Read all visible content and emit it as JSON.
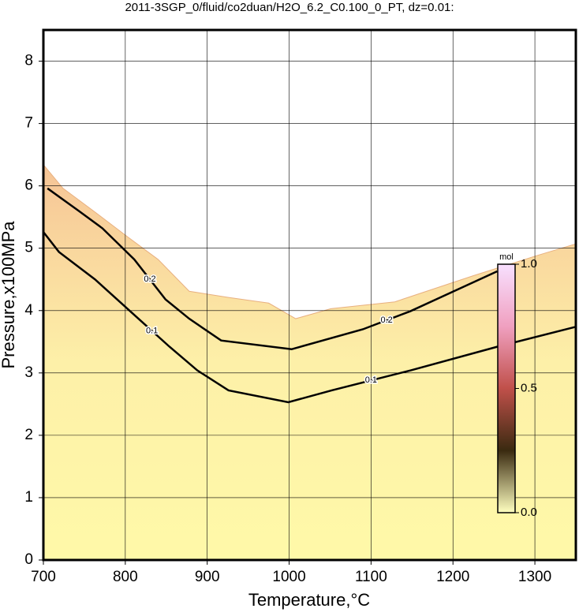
{
  "chart_data": {
    "type": "contour",
    "title": "2011-3SGP_0/fluid/co2duan/H2O_6.2_C0.100_0_PT, dz=0.01:",
    "xlabel": "Temperature,°C",
    "ylabel": "Pressure,x100MPa",
    "xlim": [
      700,
      1350
    ],
    "ylim": [
      0,
      8.5
    ],
    "xticks": [
      700,
      800,
      900,
      1000,
      1100,
      1200,
      1300
    ],
    "yticks": [
      0,
      1,
      2,
      3,
      4,
      5,
      6,
      7,
      8
    ],
    "grid": true,
    "fill_colors": [
      "#f6c496",
      "#fdf0a8",
      "#fff9a8"
    ],
    "boundary": {
      "x": [
        700,
        724,
        763,
        801,
        840,
        878,
        926,
        975,
        1008,
        1051,
        1129,
        1225,
        1302,
        1350
      ],
      "y": [
        6.34,
        5.96,
        5.58,
        5.2,
        4.82,
        4.31,
        4.21,
        4.12,
        3.87,
        4.03,
        4.14,
        4.56,
        4.88,
        5.07
      ]
    },
    "contours": [
      {
        "level": 0.2,
        "color": "#000000",
        "x": [
          705,
          743,
          772,
          811,
          849,
          878,
          917,
          1003,
          1090,
          1148,
          1254
        ],
        "y": [
          5.96,
          5.6,
          5.32,
          4.82,
          4.18,
          3.87,
          3.52,
          3.38,
          3.7,
          3.99,
          4.63
        ]
      },
      {
        "level": 0.1,
        "color": "#000000",
        "x": [
          700,
          719,
          763,
          811,
          854,
          888,
          926,
          999,
          1052,
          1148,
          1254,
          1350
        ],
        "y": [
          5.26,
          4.94,
          4.5,
          3.93,
          3.42,
          3.04,
          2.72,
          2.53,
          2.72,
          3.04,
          3.42,
          3.74
        ]
      }
    ],
    "colorbar": {
      "label": "mol",
      "lim": [
        0,
        1
      ],
      "ticks": [
        {
          "value": 0,
          "label": "0.0"
        },
        0.5,
        {
          "value": 1,
          "label": "1.0"
        }
      ],
      "colors": [
        "#ffffc0",
        "#3a2a10",
        "#c0504a",
        "#f0a0c0",
        "#f8e0ff"
      ]
    }
  }
}
